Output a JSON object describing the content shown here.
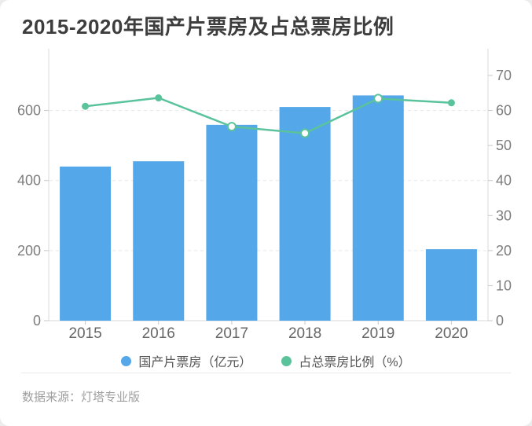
{
  "card": {
    "title": "2015-2020年国产片票房及占总票房比例",
    "source": "数据来源：灯塔专业版"
  },
  "legend": {
    "items": [
      {
        "label": "国产片票房（亿元）",
        "color": "#54a7e8"
      },
      {
        "label": "占总票房比例（%）",
        "color": "#5bc39c"
      }
    ]
  },
  "chart_data": {
    "type": "combo",
    "title": "2015-2020年国产片票房及占总票房比例",
    "categories": [
      "2015",
      "2016",
      "2017",
      "2018",
      "2019",
      "2020"
    ],
    "series": [
      {
        "name": "国产片票房（亿元）",
        "type": "bar",
        "axis": "left",
        "color": "#54a7e8",
        "values": [
          440,
          455,
          559,
          610,
          643,
          204
        ]
      },
      {
        "name": "占总票房比例（%）",
        "type": "line",
        "axis": "right",
        "color": "#5bc39c",
        "values": [
          61.2,
          63.6,
          55.4,
          53.5,
          63.4,
          62.2
        ]
      }
    ],
    "y_axis_left": {
      "ticks": [
        0,
        200,
        400,
        600
      ],
      "max": 700
    },
    "y_axis_right": {
      "ticks": [
        0,
        10,
        20,
        30,
        40,
        50,
        60,
        70
      ],
      "max": 70
    },
    "grid": "dashed horizontal lines at left-axis 200/400/600",
    "legend_position": "bottom",
    "source": "数据来源：灯塔专业版"
  }
}
